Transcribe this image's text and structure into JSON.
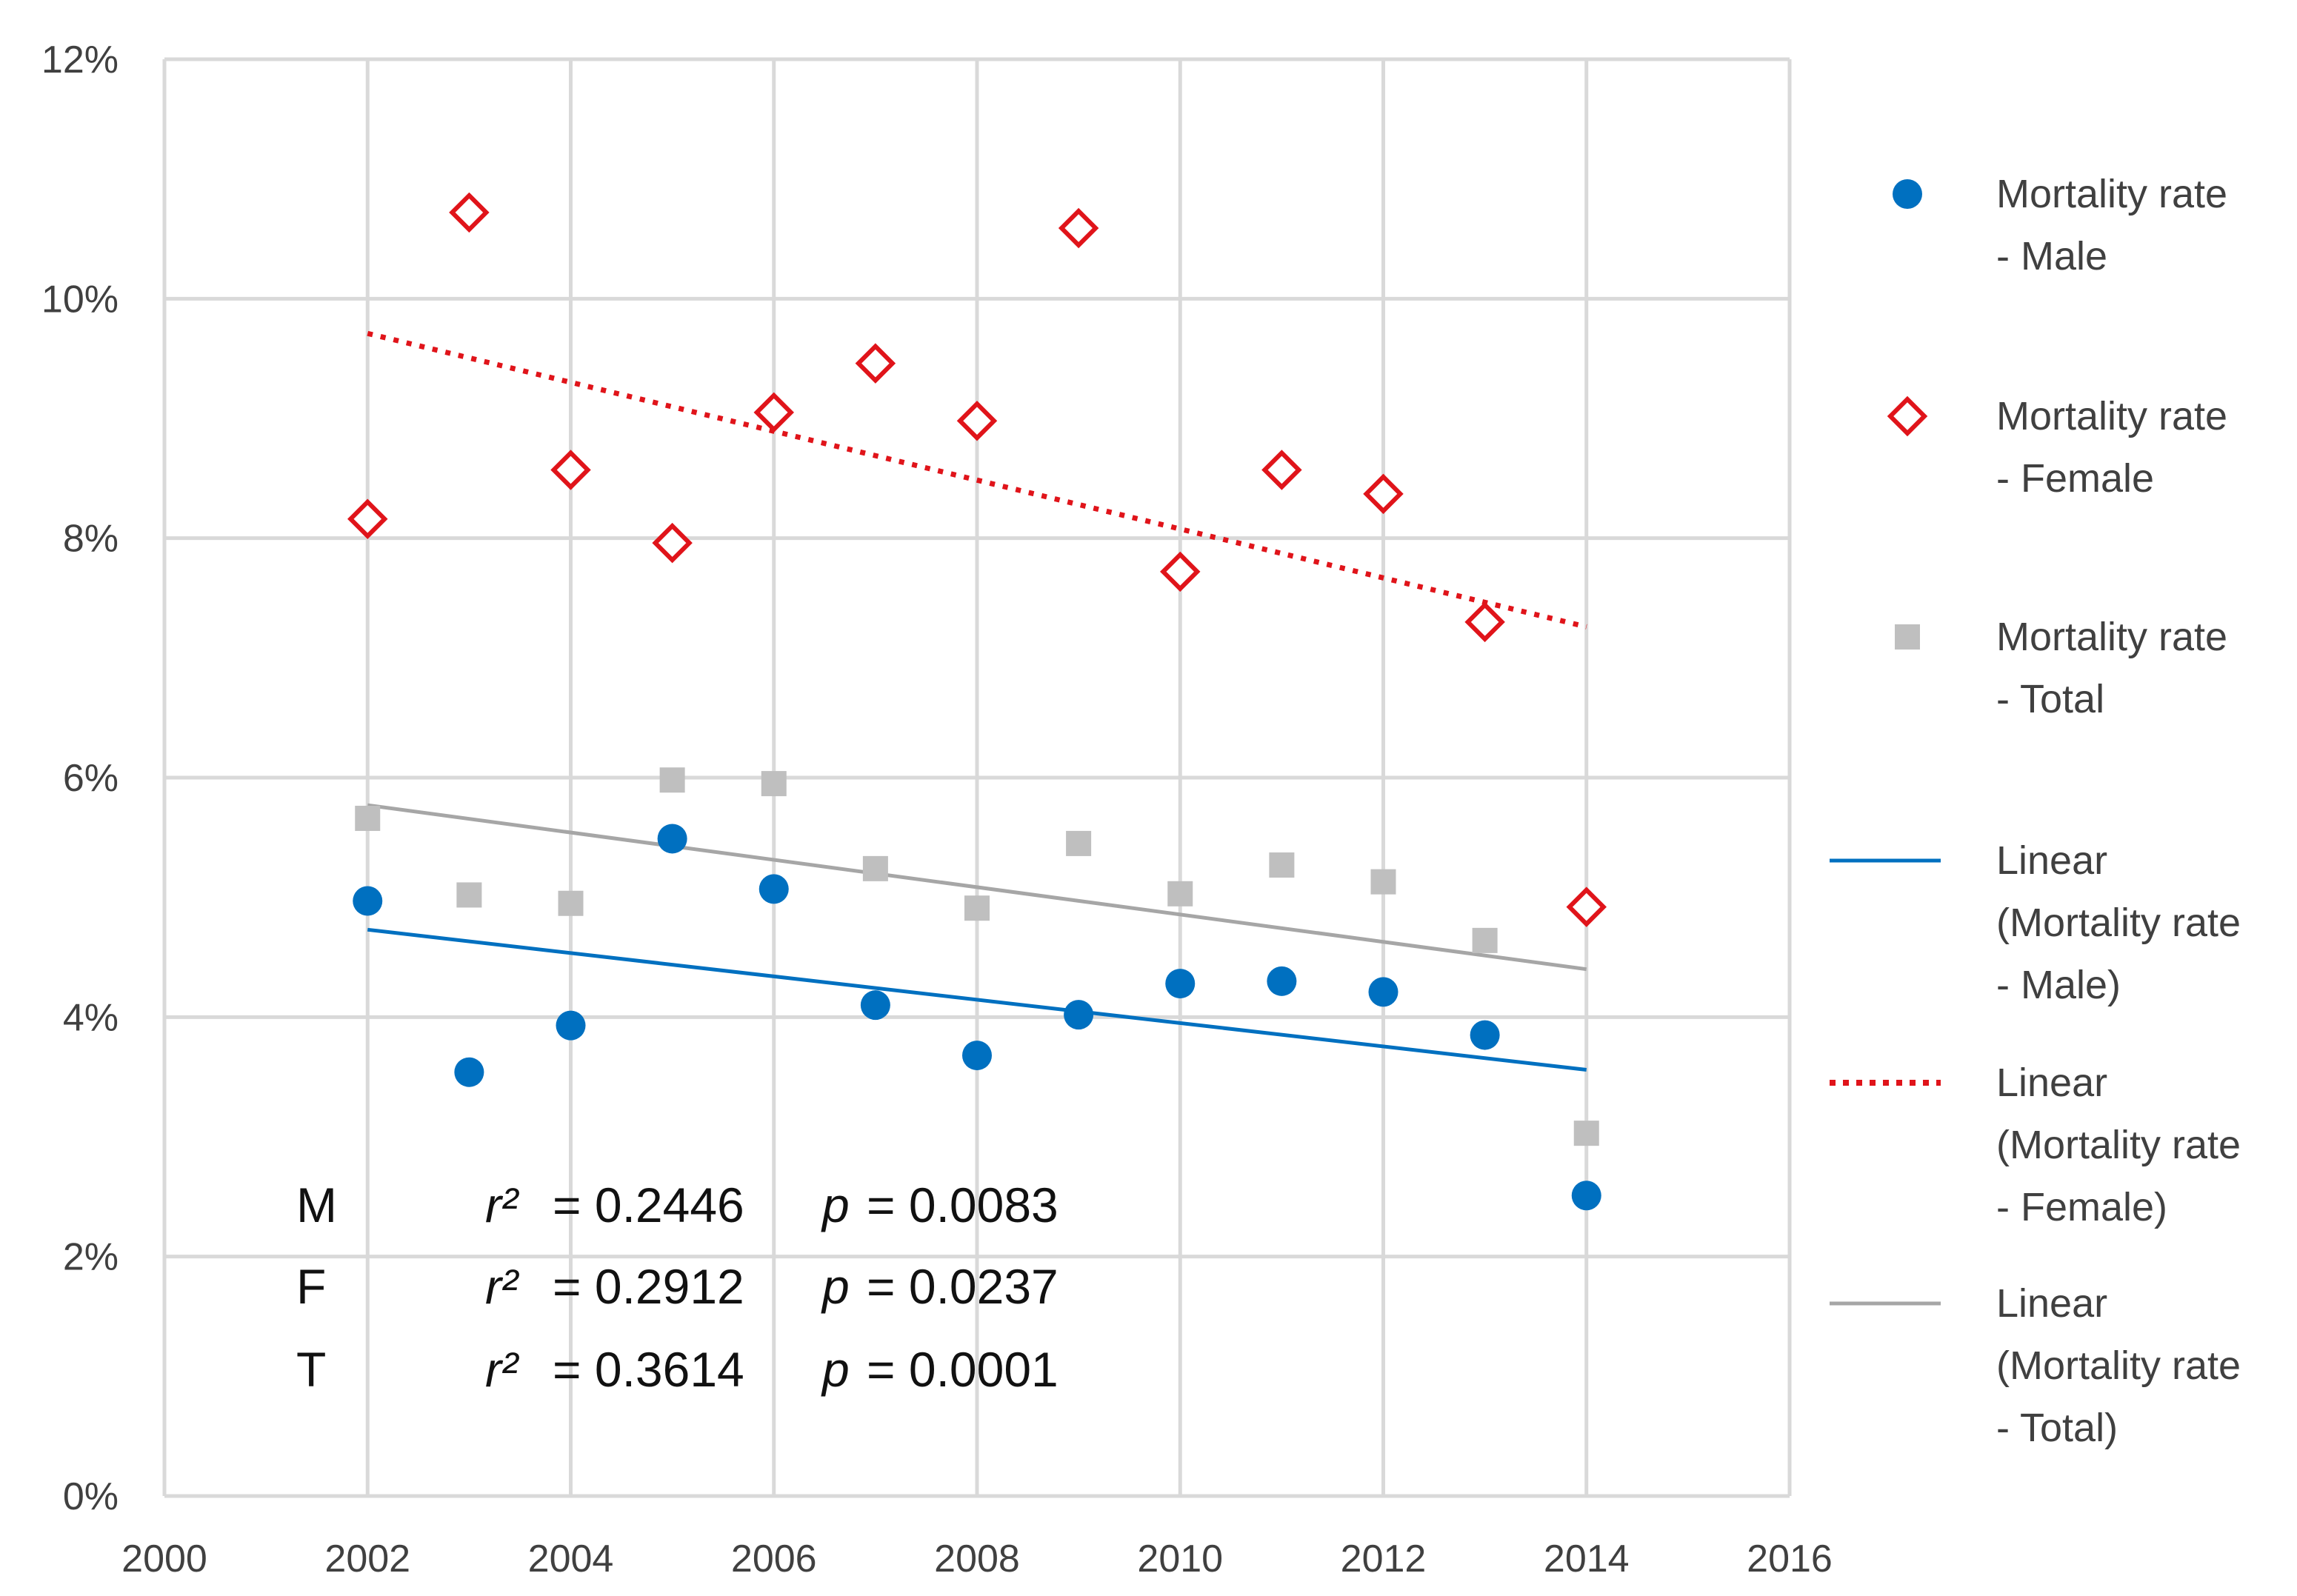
{
  "chart_data": {
    "type": "scatter",
    "title": "",
    "xlabel": "",
    "ylabel": "",
    "xlim": [
      2000,
      2016
    ],
    "ylim": [
      0,
      0.12
    ],
    "x_ticks": [
      2000,
      2002,
      2004,
      2006,
      2008,
      2010,
      2012,
      2014,
      2016
    ],
    "x_tick_labels": [
      "2000",
      "2002",
      "2004",
      "2006",
      "2008",
      "2010",
      "2012",
      "2014",
      "2016"
    ],
    "y_ticks": [
      0,
      0.02,
      0.04,
      0.06,
      0.08,
      0.1,
      0.12
    ],
    "y_tick_labels": [
      "0%",
      "2%",
      "4%",
      "6%",
      "8%",
      "10%",
      "12%"
    ],
    "grid": true,
    "legend_position": "right",
    "x": [
      2002,
      2003,
      2004,
      2005,
      2006,
      2007,
      2008,
      2009,
      2010,
      2011,
      2012,
      2013,
      2014
    ],
    "series": [
      {
        "name": "Mortality rate - Male",
        "legend_lines": [
          "Mortality rate",
          "- Male"
        ],
        "marker": "circle",
        "color": "#0070C0",
        "values": [
          0.0497,
          0.0354,
          0.0393,
          0.0549,
          0.0507,
          0.041,
          0.0368,
          0.0402,
          0.0428,
          0.043,
          0.0421,
          0.0385,
          0.0251
        ]
      },
      {
        "name": "Mortality rate - Female",
        "legend_lines": [
          "Mortality rate",
          "- Female"
        ],
        "marker": "diamond-open",
        "color": "#E0141A",
        "values": [
          0.0816,
          0.1072,
          0.0857,
          0.0796,
          0.0905,
          0.0946,
          0.0898,
          0.1059,
          0.0772,
          0.0857,
          0.0837,
          0.073,
          0.0492
        ]
      },
      {
        "name": "Mortality rate - Total",
        "legend_lines": [
          "Mortality rate",
          "- Total"
        ],
        "marker": "square",
        "color": "#BFBFBF",
        "values": [
          0.0566,
          0.0502,
          0.0495,
          0.0598,
          0.0595,
          0.0524,
          0.0491,
          0.0545,
          0.0503,
          0.0527,
          0.0513,
          0.0464,
          0.0303
        ]
      }
    ],
    "trendlines": [
      {
        "name": "Linear (Mortality rate - Male)",
        "legend_lines": [
          "Linear",
          "(Mortality rate",
          "- Male)"
        ],
        "style": "solid",
        "color": "#0070C0",
        "x": [
          2002,
          2014
        ],
        "y": [
          0.0473,
          0.0356
        ]
      },
      {
        "name": "Linear (Mortality rate - Female)",
        "legend_lines": [
          "Linear",
          "(Mortality rate",
          "- Female)"
        ],
        "style": "dotted",
        "color": "#E0141A",
        "x": [
          2002,
          2014
        ],
        "y": [
          0.0971,
          0.0726
        ]
      },
      {
        "name": "Linear (Mortality rate - Total)",
        "legend_lines": [
          "Linear",
          "(Mortality rate",
          "- Total)"
        ],
        "style": "solid",
        "color": "#A6A6A6",
        "x": [
          2002,
          2014
        ],
        "y": [
          0.0577,
          0.044
        ]
      }
    ],
    "annotations": [
      {
        "group": "M",
        "r2_label": "r²",
        "r2_value": "= 0.2446",
        "p_label": "p",
        "p_value": "= 0.0083"
      },
      {
        "group": "F",
        "r2_label": "r²",
        "r2_value": "= 0.2912",
        "p_label": "p",
        "p_value": "= 0.0237"
      },
      {
        "group": "T",
        "r2_label": "r²",
        "r2_value": "= 0.3614",
        "p_label": "p",
        "p_value": "= 0.0001"
      }
    ]
  }
}
